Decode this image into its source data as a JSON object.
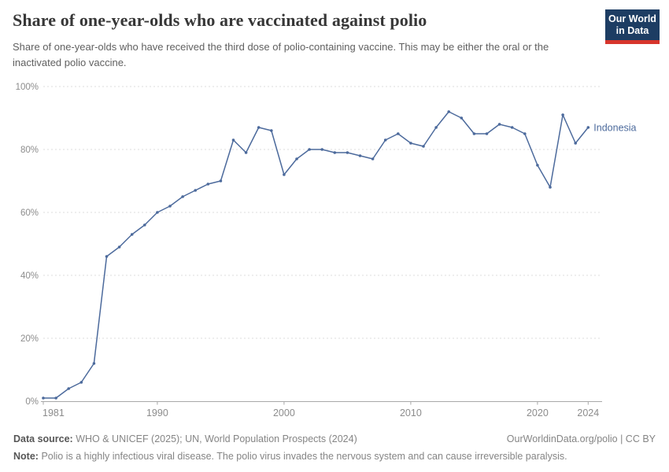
{
  "header": {
    "title": "Share of one-year-olds who are vaccinated against polio",
    "subtitle": "Share of one-year-olds who have received the third dose of polio-containing vaccine. This may be either the oral or the inactivated polio vaccine.",
    "logo": {
      "line1": "Our World",
      "line2": "in Data"
    }
  },
  "chart_data": {
    "type": "line",
    "title": "Share of one-year-olds who are vaccinated against polio",
    "entity_label": "Indonesia",
    "x": [
      1981,
      1982,
      1983,
      1984,
      1985,
      1986,
      1987,
      1988,
      1989,
      1990,
      1991,
      1992,
      1993,
      1994,
      1995,
      1996,
      1997,
      1998,
      1999,
      2000,
      2001,
      2002,
      2003,
      2004,
      2005,
      2006,
      2007,
      2008,
      2009,
      2010,
      2011,
      2012,
      2013,
      2014,
      2015,
      2016,
      2017,
      2018,
      2019,
      2020,
      2021,
      2022,
      2023,
      2024
    ],
    "series": [
      {
        "name": "Indonesia",
        "color": "#4c6a9c",
        "values": [
          1,
          1,
          4,
          6,
          12,
          46,
          49,
          53,
          56,
          60,
          62,
          65,
          67,
          69,
          70,
          83,
          79,
          87,
          86,
          72,
          77,
          80,
          80,
          79,
          79,
          78,
          77,
          83,
          85,
          82,
          81,
          87,
          92,
          90,
          85,
          85,
          88,
          87,
          85,
          75,
          68,
          91,
          82,
          87
        ]
      }
    ],
    "xlim": [
      1981,
      2024
    ],
    "ylim": [
      0,
      100
    ],
    "x_ticks": [
      1981,
      1990,
      2000,
      2010,
      2020,
      2024
    ],
    "x_tick_labels": [
      "1981",
      "1990",
      "2000",
      "2010",
      "2020",
      "2024"
    ],
    "y_ticks": [
      0,
      20,
      40,
      60,
      80,
      100
    ],
    "y_tick_labels": [
      "0%",
      "20%",
      "40%",
      "60%",
      "80%",
      "100%"
    ],
    "grid": "horizontal-dashed",
    "legend_position": "end-of-line-label"
  },
  "footer": {
    "datasource_label": "Data source:",
    "datasource_text": "WHO & UNICEF (2025); UN, World Population Prospects (2024)",
    "license": "OurWorldinData.org/polio | CC BY",
    "note_label": "Note:",
    "note_text": "Polio is a highly infectious viral disease. The polio virus invades the nervous system and can cause irreversible paralysis."
  },
  "colors": {
    "line": "#4c6a9c",
    "grid": "#dedede",
    "axis": "#a8a8a8",
    "tick_text": "#8c8c8c",
    "title_text": "#373737",
    "subtitle_text": "#606060",
    "footer_text": "#858585",
    "logo_bg": "#1d3d63",
    "logo_stripe": "#d7352c"
  }
}
